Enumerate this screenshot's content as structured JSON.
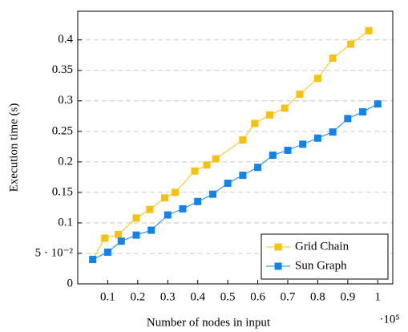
{
  "chart_data": {
    "type": "line",
    "xlabel": "Number of nodes in input",
    "ylabel": "Execution time (s)",
    "x_multiplier": "·10⁵",
    "xlim": [
      0,
      1.05
    ],
    "ylim": [
      0,
      0.447
    ],
    "xticks": [
      0.1,
      0.2,
      0.3,
      0.4,
      0.5,
      0.6,
      0.7,
      0.8,
      0.9,
      1
    ],
    "yticks": [
      0,
      {
        "value": 0.05,
        "label": "5 · 10⁻²"
      },
      0.1,
      0.15,
      0.2,
      0.25,
      0.3,
      0.35,
      0.4
    ],
    "grid": true,
    "legend": "lower right",
    "series": [
      {
        "name": "Grid Chain",
        "color": "#f5c211",
        "x": [
          0.05,
          0.09,
          0.135,
          0.195,
          0.24,
          0.29,
          0.325,
          0.39,
          0.43,
          0.46,
          0.55,
          0.59,
          0.64,
          0.69,
          0.74,
          0.8,
          0.85,
          0.91,
          0.97
        ],
        "values": [
          0.04,
          0.075,
          0.081,
          0.108,
          0.122,
          0.141,
          0.15,
          0.185,
          0.195,
          0.205,
          0.236,
          0.263,
          0.277,
          0.288,
          0.311,
          0.337,
          0.37,
          0.393,
          0.415
        ]
      },
      {
        "name": "Sun Graph",
        "color": "#1283e8",
        "x": [
          0.05,
          0.1,
          0.145,
          0.195,
          0.245,
          0.3,
          0.35,
          0.4,
          0.45,
          0.5,
          0.55,
          0.6,
          0.65,
          0.7,
          0.75,
          0.8,
          0.85,
          0.9,
          0.95,
          1.0
        ],
        "values": [
          0.04,
          0.052,
          0.07,
          0.08,
          0.088,
          0.113,
          0.123,
          0.135,
          0.147,
          0.165,
          0.178,
          0.191,
          0.211,
          0.219,
          0.229,
          0.239,
          0.249,
          0.271,
          0.282,
          0.295
        ]
      }
    ]
  }
}
